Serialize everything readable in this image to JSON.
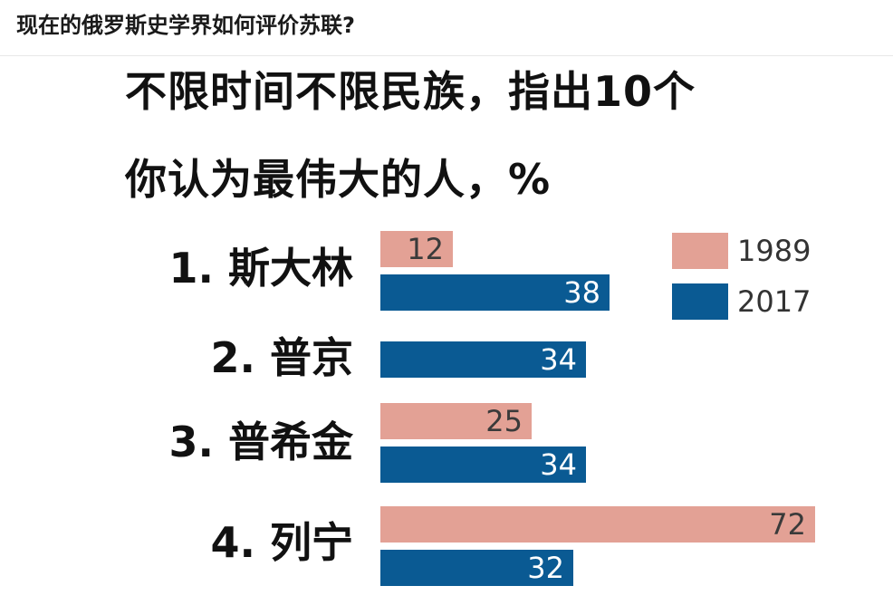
{
  "question": {
    "title": "现在的俄罗斯史学界如何评价苏联?"
  },
  "chart_data": {
    "type": "bar",
    "orientation": "horizontal",
    "title_line1": "不限时间不限民族，指出10个",
    "title_line2": "你认为最伟大的人，%",
    "categories": [
      "1. 斯大林",
      "2. 普京",
      "3. 普希金",
      "4. 列宁"
    ],
    "series": [
      {
        "name": "1989",
        "color": "#e3a195",
        "values": [
          12,
          null,
          25,
          72
        ]
      },
      {
        "name": "2017",
        "color": "#0a5a93",
        "values": [
          38,
          34,
          34,
          32
        ]
      }
    ],
    "xlim": [
      0,
      72
    ],
    "legend_position": "top-right",
    "grid": false
  }
}
